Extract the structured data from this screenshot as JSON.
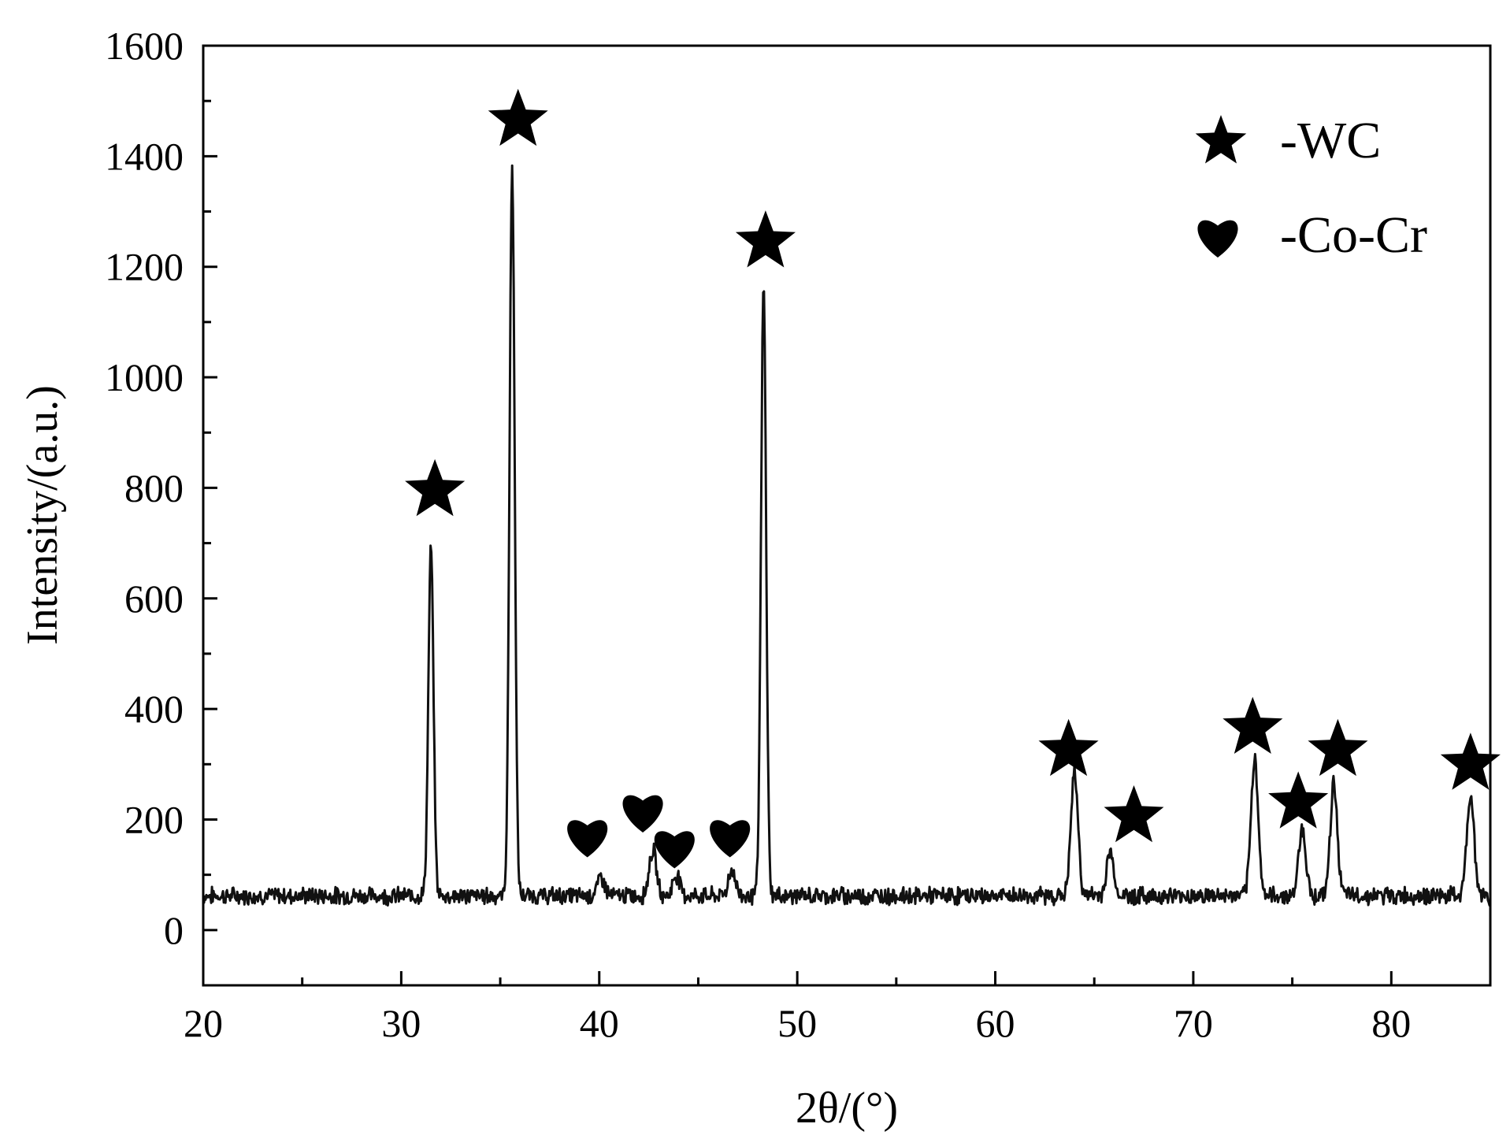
{
  "chart_data": {
    "type": "line",
    "title": "",
    "xlabel": "2θ/(°)",
    "ylabel": "Intensity/(a.u.)",
    "xlim": [
      20,
      85
    ],
    "ylim": [
      -100,
      1600
    ],
    "xticks": [
      20,
      30,
      40,
      50,
      60,
      70,
      80
    ],
    "yticks": [
      0,
      200,
      400,
      600,
      800,
      1000,
      1200,
      1400,
      1600
    ],
    "grid": false,
    "legend_position": "top-right",
    "colors": {
      "line": "#111111",
      "marker": "#000000",
      "axis": "#000000"
    },
    "legend": [
      {
        "marker": "star-icon",
        "label": "-WC"
      },
      {
        "marker": "heart-icon",
        "label": "-Co-Cr"
      }
    ],
    "series": [
      {
        "baseline": 62,
        "peaks": [
          {
            "x": 31.5,
            "y": 690
          },
          {
            "x": 35.6,
            "y": 1375
          },
          {
            "x": 40.1,
            "y": 95
          },
          {
            "x": 42.7,
            "y": 145
          },
          {
            "x": 43.9,
            "y": 100
          },
          {
            "x": 46.7,
            "y": 108
          },
          {
            "x": 48.3,
            "y": 1165
          },
          {
            "x": 64.0,
            "y": 285
          },
          {
            "x": 65.8,
            "y": 140
          },
          {
            "x": 73.1,
            "y": 310
          },
          {
            "x": 75.5,
            "y": 185
          },
          {
            "x": 77.1,
            "y": 265
          },
          {
            "x": 84.0,
            "y": 245
          }
        ]
      }
    ],
    "annotations": [
      {
        "marker": "star-icon",
        "x": 31.7,
        "y": 795
      },
      {
        "marker": "star-icon",
        "x": 35.9,
        "y": 1465
      },
      {
        "marker": "star-icon",
        "x": 48.4,
        "y": 1245
      },
      {
        "marker": "star-icon",
        "x": 63.7,
        "y": 325
      },
      {
        "marker": "star-icon",
        "x": 67.0,
        "y": 205
      },
      {
        "marker": "star-icon",
        "x": 73.0,
        "y": 365
      },
      {
        "marker": "star-icon",
        "x": 75.3,
        "y": 230
      },
      {
        "marker": "star-icon",
        "x": 77.3,
        "y": 325
      },
      {
        "marker": "star-icon",
        "x": 84.0,
        "y": 300
      },
      {
        "marker": "heart-icon",
        "x": 39.4,
        "y": 170
      },
      {
        "marker": "heart-icon",
        "x": 42.2,
        "y": 215
      },
      {
        "marker": "heart-icon",
        "x": 43.8,
        "y": 150
      },
      {
        "marker": "heart-icon",
        "x": 46.6,
        "y": 170
      }
    ]
  }
}
